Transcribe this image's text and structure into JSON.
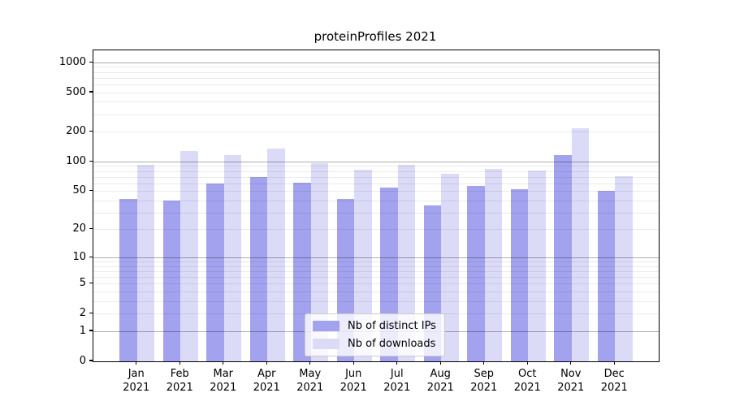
{
  "title": "proteinProfiles 2021",
  "colors": {
    "ips_bar": "#a2a2ee",
    "downloads_bar": "#dbdbf8",
    "grid_major": "rgba(0,0,0,0.32)",
    "grid_minor": "rgba(0,0,0,0.08)",
    "spine": "#000000"
  },
  "chart_data": {
    "type": "bar",
    "title": "proteinProfiles 2021",
    "categories": [
      "Jan 2021",
      "Feb 2021",
      "Mar 2021",
      "Apr 2021",
      "May 2021",
      "Jun 2021",
      "Jul 2021",
      "Aug 2021",
      "Sep 2021",
      "Oct 2021",
      "Nov 2021",
      "Dec 2021"
    ],
    "series": [
      {
        "name": "Nb of distinct IPs",
        "color": "#a2a2ee",
        "values": [
          42,
          40,
          60,
          70,
          61,
          42,
          55,
          36,
          57,
          53,
          117,
          51
        ]
      },
      {
        "name": "Nb of downloads",
        "color": "#dbdbf8",
        "values": [
          93,
          129,
          118,
          135,
          96,
          83,
          94,
          75,
          85,
          81,
          218,
          72
        ]
      }
    ],
    "xlabel": "",
    "ylabel": "",
    "yscale": "log1p",
    "yticks": [
      0,
      1,
      2,
      5,
      10,
      20,
      50,
      100,
      200,
      500,
      1000
    ],
    "ytick_labels": [
      "0",
      "1",
      "2",
      "5",
      "10",
      "20",
      "50",
      "100",
      "200",
      "500",
      "1000"
    ],
    "minor_gridlines": [
      2,
      3,
      4,
      5,
      6,
      7,
      8,
      9,
      20,
      30,
      40,
      50,
      60,
      70,
      80,
      90,
      200,
      300,
      400,
      500,
      600,
      700,
      800,
      900
    ],
    "major_gridlines": [
      1,
      10,
      100,
      1000
    ],
    "ylim": [
      0,
      1330
    ],
    "grid": true,
    "legend": {
      "position": "lower center"
    }
  }
}
